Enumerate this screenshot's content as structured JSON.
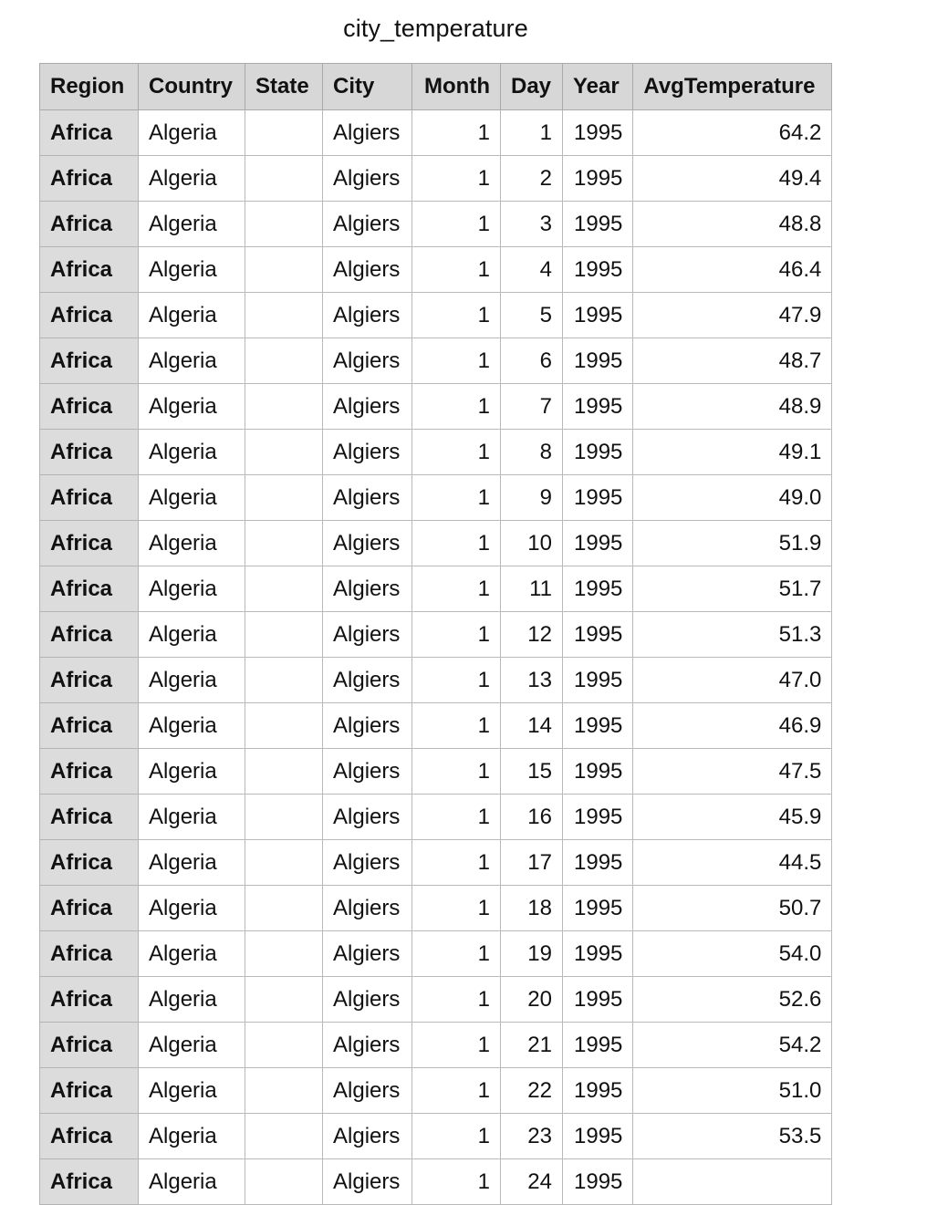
{
  "title": "city_temperature",
  "columns": [
    "Region",
    "Country",
    "State",
    "City",
    "Month",
    "Day",
    "Year",
    "AvgTemperature"
  ],
  "rows": [
    {
      "region": "Africa",
      "country": "Algeria",
      "state": "",
      "city": "Algiers",
      "month": "1",
      "day": "1",
      "year": "1995",
      "avg": "64.2"
    },
    {
      "region": "Africa",
      "country": "Algeria",
      "state": "",
      "city": "Algiers",
      "month": "1",
      "day": "2",
      "year": "1995",
      "avg": "49.4"
    },
    {
      "region": "Africa",
      "country": "Algeria",
      "state": "",
      "city": "Algiers",
      "month": "1",
      "day": "3",
      "year": "1995",
      "avg": "48.8"
    },
    {
      "region": "Africa",
      "country": "Algeria",
      "state": "",
      "city": "Algiers",
      "month": "1",
      "day": "4",
      "year": "1995",
      "avg": "46.4"
    },
    {
      "region": "Africa",
      "country": "Algeria",
      "state": "",
      "city": "Algiers",
      "month": "1",
      "day": "5",
      "year": "1995",
      "avg": "47.9"
    },
    {
      "region": "Africa",
      "country": "Algeria",
      "state": "",
      "city": "Algiers",
      "month": "1",
      "day": "6",
      "year": "1995",
      "avg": "48.7"
    },
    {
      "region": "Africa",
      "country": "Algeria",
      "state": "",
      "city": "Algiers",
      "month": "1",
      "day": "7",
      "year": "1995",
      "avg": "48.9"
    },
    {
      "region": "Africa",
      "country": "Algeria",
      "state": "",
      "city": "Algiers",
      "month": "1",
      "day": "8",
      "year": "1995",
      "avg": "49.1"
    },
    {
      "region": "Africa",
      "country": "Algeria",
      "state": "",
      "city": "Algiers",
      "month": "1",
      "day": "9",
      "year": "1995",
      "avg": "49.0"
    },
    {
      "region": "Africa",
      "country": "Algeria",
      "state": "",
      "city": "Algiers",
      "month": "1",
      "day": "10",
      "year": "1995",
      "avg": "51.9"
    },
    {
      "region": "Africa",
      "country": "Algeria",
      "state": "",
      "city": "Algiers",
      "month": "1",
      "day": "11",
      "year": "1995",
      "avg": "51.7"
    },
    {
      "region": "Africa",
      "country": "Algeria",
      "state": "",
      "city": "Algiers",
      "month": "1",
      "day": "12",
      "year": "1995",
      "avg": "51.3"
    },
    {
      "region": "Africa",
      "country": "Algeria",
      "state": "",
      "city": "Algiers",
      "month": "1",
      "day": "13",
      "year": "1995",
      "avg": "47.0"
    },
    {
      "region": "Africa",
      "country": "Algeria",
      "state": "",
      "city": "Algiers",
      "month": "1",
      "day": "14",
      "year": "1995",
      "avg": "46.9"
    },
    {
      "region": "Africa",
      "country": "Algeria",
      "state": "",
      "city": "Algiers",
      "month": "1",
      "day": "15",
      "year": "1995",
      "avg": "47.5"
    },
    {
      "region": "Africa",
      "country": "Algeria",
      "state": "",
      "city": "Algiers",
      "month": "1",
      "day": "16",
      "year": "1995",
      "avg": "45.9"
    },
    {
      "region": "Africa",
      "country": "Algeria",
      "state": "",
      "city": "Algiers",
      "month": "1",
      "day": "17",
      "year": "1995",
      "avg": "44.5"
    },
    {
      "region": "Africa",
      "country": "Algeria",
      "state": "",
      "city": "Algiers",
      "month": "1",
      "day": "18",
      "year": "1995",
      "avg": "50.7"
    },
    {
      "region": "Africa",
      "country": "Algeria",
      "state": "",
      "city": "Algiers",
      "month": "1",
      "day": "19",
      "year": "1995",
      "avg": "54.0"
    },
    {
      "region": "Africa",
      "country": "Algeria",
      "state": "",
      "city": "Algiers",
      "month": "1",
      "day": "20",
      "year": "1995",
      "avg": "52.6"
    },
    {
      "region": "Africa",
      "country": "Algeria",
      "state": "",
      "city": "Algiers",
      "month": "1",
      "day": "21",
      "year": "1995",
      "avg": "54.2"
    },
    {
      "region": "Africa",
      "country": "Algeria",
      "state": "",
      "city": "Algiers",
      "month": "1",
      "day": "22",
      "year": "1995",
      "avg": "51.0"
    },
    {
      "region": "Africa",
      "country": "Algeria",
      "state": "",
      "city": "Algiers",
      "month": "1",
      "day": "23",
      "year": "1995",
      "avg": "53.5"
    },
    {
      "region": "Africa",
      "country": "Algeria",
      "state": "",
      "city": "Algiers",
      "month": "1",
      "day": "24",
      "year": "1995",
      "avg": ""
    }
  ]
}
